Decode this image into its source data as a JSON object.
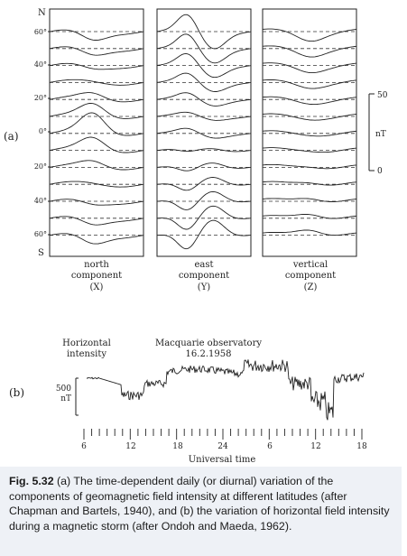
{
  "panel_a": {
    "label": "(a)",
    "pole_north": "N",
    "pole_south": "S",
    "latitude_ticks": [
      "60°",
      "40°",
      "20°",
      "0°",
      "20°",
      "40°",
      "60°"
    ],
    "scale_labels": [
      "50",
      "nT",
      "0"
    ],
    "components": [
      {
        "line1": "north",
        "line2": "component",
        "line3": "(X)"
      },
      {
        "line1": "east",
        "line2": "component",
        "line3": "(Y)"
      },
      {
        "line1": "vertical",
        "line2": "component",
        "line3": "(Z)"
      }
    ]
  },
  "panel_b": {
    "label": "(b)",
    "series_label_1": "Horizontal",
    "series_label_2": "intensity",
    "station_1": "Macquarie observatory",
    "station_2": "16.2.1958",
    "scale_value": "500",
    "scale_unit": "nT",
    "time_ticks": [
      "6",
      "12",
      "18",
      "24",
      "6",
      "12",
      "18"
    ],
    "xlabel": "Universal time"
  },
  "caption": {
    "fig_label": "Fig. 5.32",
    "text": " (a) The time-dependent daily (or diurnal) variation of the components of geomagnetic field intensity at different latitudes (after Chapman and Bartels, 1940), and (b) the variation of horizontal field intensity during a magnetic storm (after Ondoh and Maeda, 1962)."
  }
}
